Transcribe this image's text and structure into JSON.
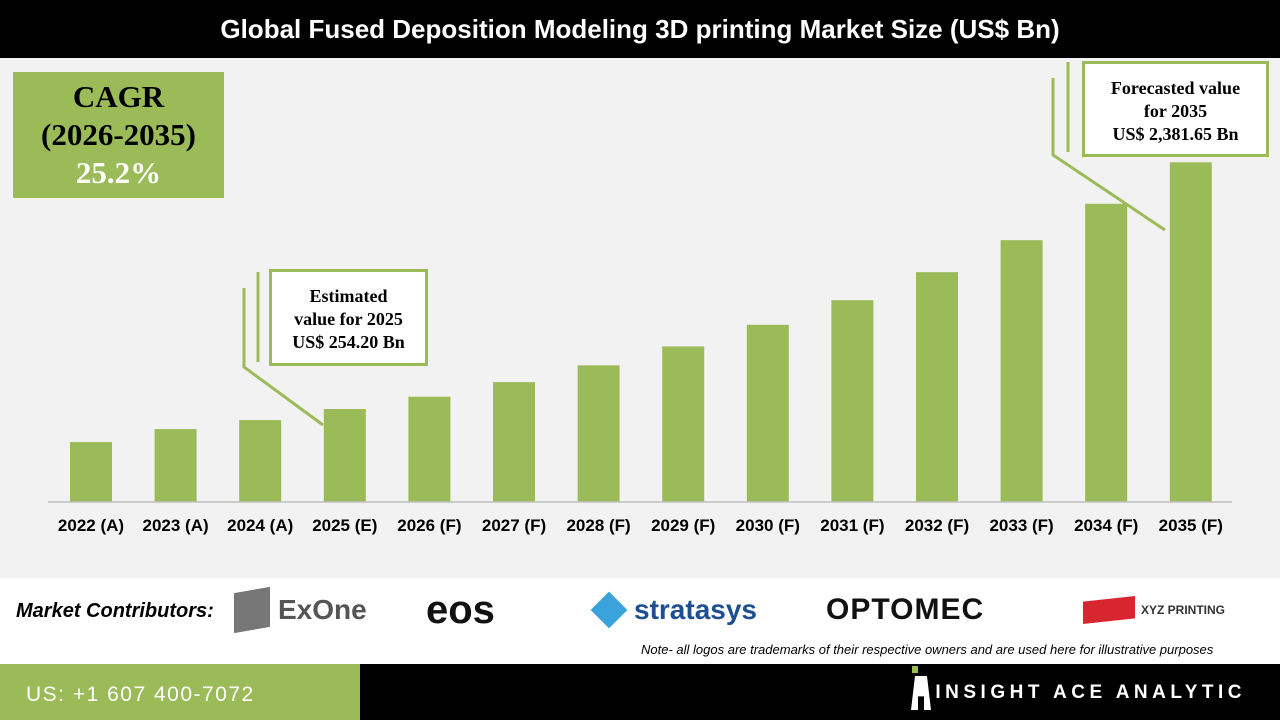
{
  "title": "Global Fused Deposition Modeling 3D printing Market  Size (US$ Bn)",
  "cagr": {
    "label": "CAGR",
    "period": "(2026-2035)",
    "value": "25.2%"
  },
  "callouts": {
    "estimated": [
      "Estimated",
      "value for 2025",
      "US$ 254.20 Bn"
    ],
    "forecast": [
      "Forecasted value",
      "for 2035",
      "US$ 2,381.65 Bn"
    ]
  },
  "chart_data": {
    "type": "bar",
    "title": "Global Fused Deposition Modeling 3D printing Market  Size (US$ Bn)",
    "categories": [
      "2022 (A)",
      "2023 (A)",
      "2024 (A)",
      "2025 (E)",
      "2026 (F)",
      "2027 (F)",
      "2028 (F)",
      "2029 (F)",
      "2030 (F)",
      "2031 (F)",
      "2032 (F)",
      "2033 (F)",
      "2034 (F)",
      "2035 (F)"
    ],
    "values": [
      119,
      167,
      204,
      254.2,
      315,
      394,
      494,
      618,
      774,
      969,
      1213,
      1519,
      1902,
      2381.65
    ],
    "color": "#9bbb59",
    "grid": false
  },
  "contributors": {
    "label": "Market Contributors:",
    "logos": [
      "ExOne",
      "eos",
      "stratasys",
      "OPTOMEC",
      "XYZ PRINTING"
    ]
  },
  "note": "Note- all logos are trademarks of their respective owners and are used here for illustrative purposes",
  "footer": {
    "phone": "US: +1 607 400-7072",
    "brand": "INSIGHT ACE ANALYTIC"
  },
  "colors": {
    "accent": "#9bbb59",
    "dark": "#000000"
  }
}
